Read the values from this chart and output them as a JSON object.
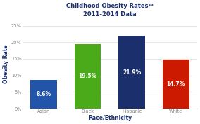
{
  "title_line1": "Childhood Obesity Rates²³",
  "title_line2": "2011-2014 Data",
  "categories": [
    "Asian",
    "Black",
    "Hispanic",
    "White"
  ],
  "values": [
    8.6,
    19.5,
    21.9,
    14.7
  ],
  "bar_colors": [
    "#2255aa",
    "#4aaa1a",
    "#1a2f6b",
    "#cc1a00"
  ],
  "bar_labels": [
    "8.6%",
    "19.5%",
    "21.9%",
    "14.7%"
  ],
  "xlabel": "Race/Ethnicity",
  "ylabel": "Obesity Rate",
  "ylim": [
    0,
    27
  ],
  "yticks": [
    0,
    5,
    10,
    15,
    20,
    25
  ],
  "ytick_labels": [
    "0%",
    "5%",
    "10%",
    "15%",
    "20%",
    "25%"
  ],
  "background_color": "#ffffff",
  "plot_bg_color": "#ffffff",
  "title_color": "#1a3070",
  "label_color": "#ffffff",
  "xlabel_color": "#1a3070",
  "ylabel_color": "#1a3070",
  "tick_color": "#888888",
  "grid_color": "#dddddd",
  "title_fontsize": 6.0,
  "label_fontsize": 5.5,
  "axis_label_fontsize": 5.5,
  "tick_fontsize": 4.8,
  "bar_width": 0.6
}
